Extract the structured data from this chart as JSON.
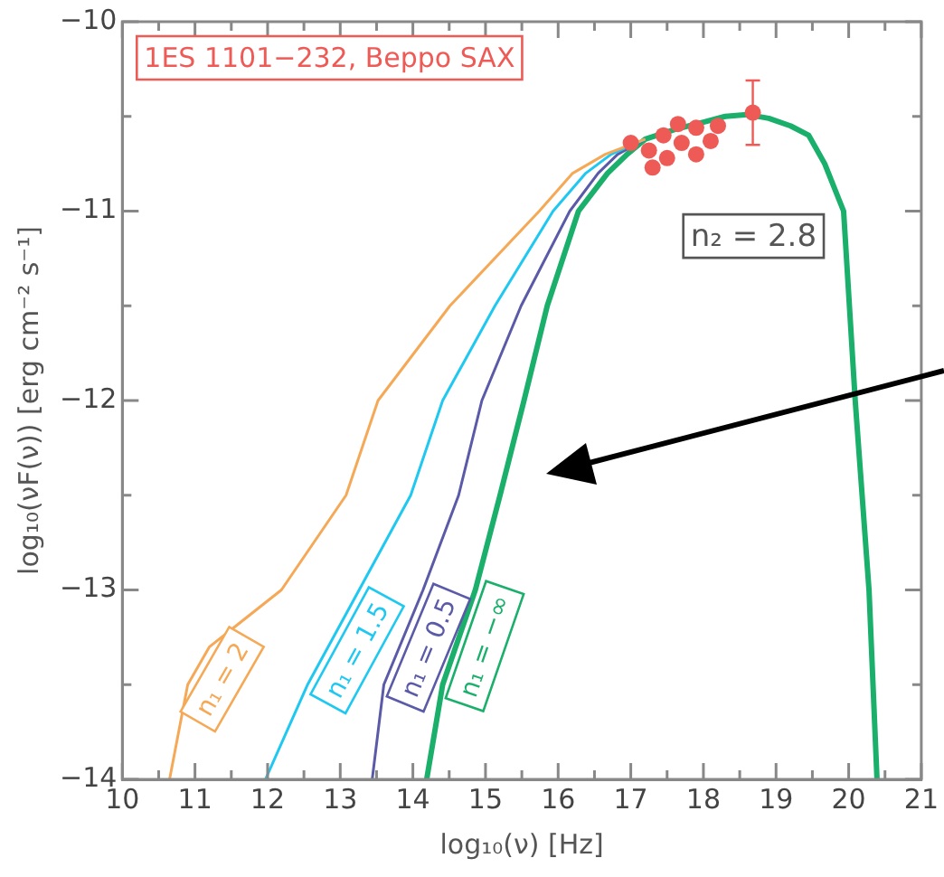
{
  "chart_data": {
    "type": "line",
    "xlabel": "log₁₀(ν) [Hz]",
    "ylabel": "log₁₀(νF(ν)) [erg cm⁻² s⁻¹]",
    "xlim": [
      10,
      21
    ],
    "ylim": [
      -14,
      -10
    ],
    "xticks": [
      10,
      {
        "value": 10.5,
        "label": null
      },
      11,
      {
        "value": 11.5,
        "label": null
      },
      12,
      {
        "value": 12.5,
        "label": null
      },
      13,
      {
        "value": 13.5,
        "label": null
      },
      14,
      {
        "value": 14.5,
        "label": null
      },
      15,
      {
        "value": 15.5,
        "label": null
      },
      16,
      {
        "value": 16.5,
        "label": null
      },
      17,
      {
        "value": 17.5,
        "label": null
      },
      18,
      {
        "value": 18.5,
        "label": null
      },
      19,
      {
        "value": 19.5,
        "label": null
      },
      20,
      {
        "value": 20.5,
        "label": null
      },
      21
    ],
    "yticks": [
      {
        "value": -14,
        "label": "−14"
      },
      {
        "value": -13.5,
        "label": null
      },
      {
        "value": -13,
        "label": "−13"
      },
      {
        "value": -12.5,
        "label": null
      },
      {
        "value": -12,
        "label": "−12"
      },
      {
        "value": -11.5,
        "label": null
      },
      {
        "value": -11,
        "label": "−11"
      },
      {
        "value": -10.5,
        "label": null
      },
      {
        "value": -10,
        "label": "−10"
      }
    ],
    "grid": false,
    "legend": false,
    "marker": "none",
    "line_style": "solid",
    "annotations": [
      "1ES 1101−232, Beppo SAX",
      "n₂ = 2.8"
    ],
    "series": [
      {
        "name": "n₁ = 2",
        "color": "#f5a957",
        "x": [
          10.65,
          10.9,
          11.2,
          12.19,
          13.08,
          13.52,
          14.51,
          15.74,
          16.2,
          16.65,
          17.2
        ],
        "values": [
          -14,
          -13.5,
          -13.3,
          -13,
          -12.5,
          -12,
          -11.5,
          -11,
          -10.8,
          -10.7,
          -10.62
        ]
      },
      {
        "name": "n₁ = 1.5",
        "color": "#1ec8f0",
        "x": [
          11.97,
          12.55,
          13.26,
          13.97,
          14.41,
          15.13,
          15.93,
          16.38,
          16.73,
          17.2
        ],
        "values": [
          -14,
          -13.5,
          -13,
          -12.5,
          -12,
          -11.5,
          -11,
          -10.8,
          -10.7,
          -10.62
        ]
      },
      {
        "name": "n₁ = 0.5",
        "color": "#5a5aa8",
        "x": [
          13.44,
          13.6,
          14.14,
          14.63,
          14.95,
          15.49,
          16.16,
          16.55,
          16.82,
          17.2
        ],
        "values": [
          -14,
          -13.5,
          -13,
          -12.5,
          -12,
          -11.5,
          -11,
          -10.8,
          -10.7,
          -10.62
        ]
      },
      {
        "name": "n₁ = −∞",
        "color": "#1aaf6a",
        "x": [
          14.19,
          14.41,
          14.86,
          15.2,
          15.53,
          15.85,
          16.28,
          16.68,
          16.95,
          17.2,
          17.6,
          18.0,
          18.3,
          18.6,
          18.9,
          19.2,
          19.45,
          19.67,
          19.93,
          20.09,
          20.28,
          20.39
        ],
        "values": [
          -14,
          -13.5,
          -13,
          -12.5,
          -12,
          -11.5,
          -11,
          -10.8,
          -10.7,
          -10.62,
          -10.57,
          -10.53,
          -10.5,
          -10.49,
          -10.51,
          -10.55,
          -10.6,
          -10.75,
          -11,
          -12,
          -13,
          -14
        ]
      },
      {
        "type": "scatter",
        "marker": "circle",
        "color": "#ee5a55",
        "x": [
          17.0,
          17.25,
          17.3,
          17.45,
          17.5,
          17.7,
          17.65,
          17.9,
          17.9,
          18.1,
          18.2,
          18.68
        ],
        "values": [
          -10.64,
          -10.68,
          -10.77,
          -10.6,
          -10.72,
          -10.64,
          -10.54,
          -10.7,
          -10.56,
          -10.63,
          -10.55,
          -10.48
        ],
        "errors": [
          null,
          null,
          null,
          null,
          null,
          null,
          null,
          null,
          null,
          null,
          null,
          0.17
        ]
      }
    ]
  }
}
